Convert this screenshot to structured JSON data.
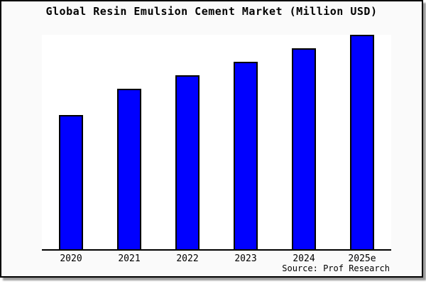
{
  "title": "Global Resin Emulsion Cement Market (Million USD)",
  "source": "Source: Prof Research",
  "colors": {
    "bar_fill": "#0000ff",
    "bar_border": "#000000",
    "card_background": "#fafafa",
    "plot_background": "#ffffff",
    "axis": "#000000",
    "text": "#000000"
  },
  "chart_data": {
    "type": "bar",
    "title": "Global Resin Emulsion Cement Market (Million USD)",
    "categories": [
      "2020",
      "2021",
      "2022",
      "2023",
      "2024",
      "2025e"
    ],
    "values": [
      62.6,
      74.8,
      81.1,
      87.4,
      93.7,
      100
    ],
    "value_note": "No y-axis labels or gridlines are shown; values are relative bar heights indexed to 2025e = 100",
    "xlabel": "",
    "ylabel": "",
    "ylim": [
      0,
      100
    ],
    "grid": false,
    "legend": false,
    "source": "Source: Prof Research"
  }
}
